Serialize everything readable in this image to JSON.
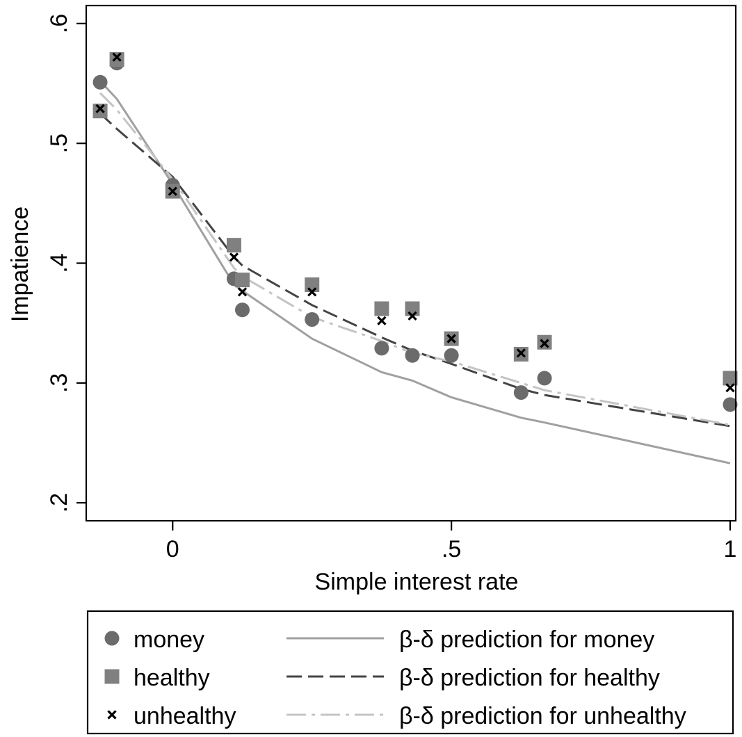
{
  "chart_data": {
    "type": "scatter",
    "xlabel": "Simple interest rate",
    "ylabel": "Impatience",
    "xlim": [
      -0.155,
      1.01
    ],
    "ylim": [
      0.185,
      0.615
    ],
    "x_ticks": [
      {
        "value": 0,
        "label": "0"
      },
      {
        "value": 0.5,
        "label": ".5"
      },
      {
        "value": 1,
        "label": "1"
      }
    ],
    "y_ticks": [
      {
        "value": 0.2,
        "label": ".2"
      },
      {
        "value": 0.3,
        "label": ".3"
      },
      {
        "value": 0.4,
        "label": ".4"
      },
      {
        "value": 0.5,
        "label": ".5"
      },
      {
        "value": 0.6,
        "label": ".6"
      }
    ],
    "grid": false,
    "legend_position": "bottom",
    "series": [
      {
        "name": "money",
        "kind": "points",
        "marker": "circle",
        "color": "#6b6b6b",
        "x": [
          -0.13,
          -0.1,
          0,
          0.11,
          0.125,
          0.25,
          0.375,
          0.43,
          0.5,
          0.625,
          0.667,
          1
        ],
        "y": [
          0.551,
          0.567,
          0.465,
          0.387,
          0.361,
          0.353,
          0.329,
          0.323,
          0.323,
          0.292,
          0.304,
          0.282
        ]
      },
      {
        "name": "healthy",
        "kind": "points",
        "marker": "square",
        "color": "#808080",
        "x": [
          -0.13,
          -0.1,
          0,
          0.11,
          0.125,
          0.25,
          0.375,
          0.43,
          0.5,
          0.625,
          0.667,
          1
        ],
        "y": [
          0.527,
          0.57,
          0.46,
          0.415,
          0.386,
          0.382,
          0.362,
          0.362,
          0.337,
          0.324,
          0.334,
          0.304
        ]
      },
      {
        "name": "unhealthy",
        "kind": "points",
        "marker": "x",
        "color": "#000000",
        "x": [
          -0.13,
          -0.1,
          0,
          0.11,
          0.125,
          0.25,
          0.375,
          0.43,
          0.5,
          0.625,
          0.667,
          1
        ],
        "y": [
          0.529,
          0.572,
          0.46,
          0.405,
          0.376,
          0.376,
          0.352,
          0.356,
          0.337,
          0.325,
          0.333,
          0.296
        ]
      },
      {
        "name": "β-δ prediction for money",
        "kind": "line",
        "dash": "solid",
        "color": "#a0a0a0",
        "x": [
          -0.13,
          -0.1,
          0,
          0.11,
          0.125,
          0.25,
          0.375,
          0.43,
          0.5,
          0.625,
          0.667,
          1
        ],
        "y": [
          0.552,
          0.537,
          0.466,
          0.382,
          0.377,
          0.337,
          0.309,
          0.302,
          0.288,
          0.271,
          0.267,
          0.233
        ]
      },
      {
        "name": "β-δ prediction for healthy",
        "kind": "line",
        "dash": "dash",
        "color": "#444444",
        "x": [
          -0.13,
          -0.1,
          0,
          0.11,
          0.125,
          0.25,
          0.375,
          0.43,
          0.5,
          0.625,
          0.667,
          1
        ],
        "y": [
          0.525,
          0.512,
          0.472,
          0.405,
          0.398,
          0.365,
          0.338,
          0.327,
          0.316,
          0.295,
          0.29,
          0.264
        ]
      },
      {
        "name": "β-δ prediction for unhealthy",
        "kind": "line",
        "dash": "dashdot",
        "color": "#c4c4c4",
        "x": [
          -0.13,
          -0.1,
          0,
          0.11,
          0.125,
          0.25,
          0.375,
          0.43,
          0.5,
          0.625,
          0.667,
          1
        ],
        "y": [
          0.542,
          0.528,
          0.47,
          0.396,
          0.389,
          0.355,
          0.335,
          0.325,
          0.318,
          0.3,
          0.294,
          0.265
        ]
      }
    ],
    "legend": {
      "left": [
        {
          "marker": "circle",
          "label": "money"
        },
        {
          "marker": "square",
          "label": "healthy"
        },
        {
          "marker": "x",
          "label": "unhealthy"
        }
      ],
      "right": [
        {
          "dash": "solid",
          "label": "β-δ prediction for money"
        },
        {
          "dash": "dash",
          "label": "β-δ prediction for healthy"
        },
        {
          "dash": "dashdot",
          "label": "β-δ prediction for unhealthy"
        }
      ]
    }
  }
}
